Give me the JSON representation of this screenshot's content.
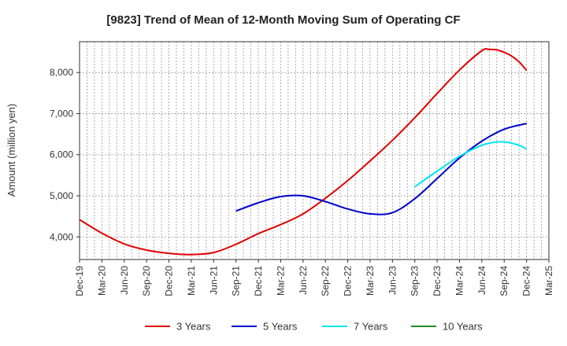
{
  "chart_data": {
    "type": "line",
    "title": "[9823]  Trend of Mean of 12-Month Moving Sum of Operating CF",
    "xlabel": "",
    "ylabel": "Amount (million yen)",
    "ylim": [
      3450,
      8750
    ],
    "yticks": [
      4000,
      5000,
      6000,
      7000,
      8000
    ],
    "ytick_labels": [
      "4,000",
      "5,000",
      "6,000",
      "7,000",
      "8,000"
    ],
    "x_start": "Dec-19",
    "x_months": 63,
    "xtick_labels": [
      "Dec-19",
      "Mar-20",
      "Jun-20",
      "Sep-20",
      "Dec-20",
      "Mar-21",
      "Jun-21",
      "Sep-21",
      "Dec-21",
      "Mar-22",
      "Jun-22",
      "Sep-22",
      "Dec-22",
      "Mar-23",
      "Jun-23",
      "Sep-23",
      "Dec-23",
      "Mar-24",
      "Jun-24",
      "Sep-24",
      "Dec-24",
      "Mar-25"
    ],
    "grid": true,
    "legend_position": "bottom",
    "series": [
      {
        "name": "3 Years",
        "color": "#e00000",
        "x": [
          0,
          3,
          6,
          9,
          12,
          15,
          18,
          21,
          24,
          27,
          30,
          33,
          36,
          39,
          42,
          45,
          48,
          51,
          54,
          55,
          56,
          57,
          58,
          59,
          60
        ],
        "values": [
          4420,
          4090,
          3830,
          3680,
          3600,
          3570,
          3620,
          3820,
          4080,
          4300,
          4560,
          4940,
          5370,
          5850,
          6350,
          6900,
          7490,
          8060,
          8530,
          8560,
          8550,
          8490,
          8400,
          8260,
          8050
        ]
      },
      {
        "name": "5 Years",
        "color": "#0000cc",
        "x": [
          21,
          24,
          27,
          30,
          33,
          36,
          39,
          42,
          45,
          48,
          51,
          54,
          57,
          60
        ],
        "values": [
          4630,
          4830,
          4980,
          5000,
          4860,
          4680,
          4560,
          4590,
          4930,
          5420,
          5920,
          6330,
          6620,
          6760
        ]
      },
      {
        "name": "7 Years",
        "color": "#00e5ee",
        "x": [
          45,
          48,
          51,
          54,
          56,
          57,
          58,
          59,
          60
        ],
        "values": [
          5220,
          5600,
          5960,
          6230,
          6310,
          6310,
          6280,
          6230,
          6140
        ]
      },
      {
        "name": "10 Years",
        "color": "#228b22",
        "x": [],
        "values": []
      }
    ]
  }
}
